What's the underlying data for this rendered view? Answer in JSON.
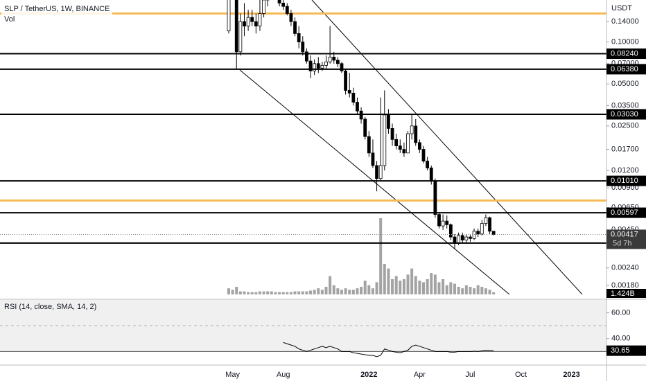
{
  "chart_data": [
    {
      "type": "candlestick",
      "title": "SLP / TetherUS, 1W, BINANCE",
      "volume_title": "Vol",
      "currency": "USDT",
      "countdown": "5d 7h",
      "volume_last_label": "1.424B",
      "log": true,
      "grid": false,
      "up_color": "#ffffff",
      "down_color": "#000000",
      "volume_color": "#8c8c8c",
      "ylim": [
        0.00155,
        0.2
      ],
      "yticks": [
        {
          "value": 0.14,
          "label": "0.14000"
        },
        {
          "value": 0.1,
          "label": "0.10000"
        },
        {
          "value": 0.07,
          "label": "0.07000"
        },
        {
          "value": 0.05,
          "label": "0.05000"
        },
        {
          "value": 0.035,
          "label": "0.03500"
        },
        {
          "value": 0.025,
          "label": "0.02500"
        },
        {
          "value": 0.017,
          "label": "0.01700"
        },
        {
          "value": 0.012,
          "label": "0.01200"
        },
        {
          "value": 0.009,
          "label": "0.00900"
        },
        {
          "value": 0.0065,
          "label": "0.00650"
        },
        {
          "value": 0.0045,
          "label": "0.00450"
        },
        {
          "value": 0.0024,
          "label": "0.00240"
        },
        {
          "value": 0.0018,
          "label": "0.00180"
        }
      ],
      "levels": [
        {
          "value": 0.0824,
          "label": "0.08240"
        },
        {
          "value": 0.0638,
          "label": "0.06380"
        },
        {
          "value": 0.0303,
          "label": "0.03030"
        },
        {
          "value": 0.0101,
          "label": "0.01010"
        },
        0.00597,
        0.00362
      ],
      "highlight_levels": [
        0.16,
        0.0073
      ],
      "highlight_color": "#f7b955",
      "categories": [
        null,
        "May",
        null,
        null,
        null,
        null,
        null,
        null,
        null,
        null,
        null,
        null,
        null,
        null,
        "Aug",
        null,
        null,
        null,
        null,
        null,
        null,
        null,
        null,
        null,
        null,
        null,
        null,
        null,
        null,
        null,
        null,
        null,
        null,
        null,
        null,
        null,
        "2022",
        null,
        null,
        null,
        null,
        null,
        null,
        null,
        null,
        null,
        null,
        null,
        null,
        "Apr",
        null,
        null,
        null,
        null,
        null,
        null,
        null,
        null,
        null,
        null,
        null,
        null,
        "Jul",
        null,
        null,
        null,
        null,
        null,
        null,
        null,
        null,
        null,
        null,
        null,
        null,
        "Oct",
        null,
        null,
        null,
        null,
        null,
        null,
        null,
        null,
        null,
        null,
        null,
        null,
        "2023"
      ],
      "open": [
        0.12,
        0.28,
        0.3,
        0.085,
        0.14,
        0.13,
        0.15,
        0.14,
        0.13,
        0.16,
        0.2,
        0.23,
        0.26,
        0.22,
        0.19,
        0.18,
        0.16,
        0.14,
        0.115,
        0.1,
        0.085,
        0.073,
        0.062,
        0.07,
        0.065,
        0.068,
        0.072,
        0.078,
        0.074,
        0.07,
        0.062,
        0.045,
        0.043,
        0.037,
        0.032,
        0.028,
        0.021,
        0.016,
        0.013,
        0.0105,
        0.013,
        0.03,
        0.024,
        0.02,
        0.018,
        0.017,
        0.016,
        0.022,
        0.025,
        0.019,
        0.017,
        0.014,
        0.0125,
        0.0101,
        0.0058,
        0.0048,
        0.0052,
        0.0049,
        0.004,
        0.0036,
        0.0041,
        0.0038,
        0.004,
        0.0039,
        0.0044,
        0.0042,
        0.005,
        0.0055,
        0.0044,
        null,
        null,
        null,
        null,
        null,
        null,
        null,
        null,
        null,
        null,
        null,
        null,
        null,
        null,
        null,
        null,
        null,
        null,
        null,
        null
      ],
      "high": [
        0.32,
        0.4,
        0.33,
        0.16,
        0.19,
        0.17,
        0.17,
        0.16,
        0.2,
        0.22,
        0.26,
        0.3,
        0.28,
        0.24,
        0.2,
        0.19,
        0.17,
        0.15,
        0.13,
        0.11,
        0.09,
        0.08,
        0.075,
        0.078,
        0.072,
        0.08,
        0.13,
        0.085,
        0.078,
        0.072,
        0.064,
        0.06,
        0.047,
        0.04,
        0.034,
        0.029,
        0.023,
        0.02,
        0.014,
        0.04,
        0.045,
        0.033,
        0.026,
        0.022,
        0.02,
        0.019,
        0.023,
        0.03,
        0.028,
        0.02,
        0.018,
        0.015,
        0.013,
        0.0105,
        0.006,
        0.0058,
        0.0057,
        0.005,
        0.0042,
        0.0043,
        0.0043,
        0.0042,
        0.0042,
        0.0046,
        0.0046,
        0.0053,
        0.0058,
        0.0056,
        0.0044,
        null,
        null,
        null,
        null,
        null,
        null,
        null,
        null,
        null,
        null,
        null,
        null,
        null,
        null,
        null,
        null,
        null,
        null,
        null,
        null
      ],
      "low": [
        0.115,
        0.2,
        0.064,
        0.08,
        0.11,
        0.12,
        0.13,
        0.115,
        0.12,
        0.15,
        0.18,
        0.2,
        0.2,
        0.18,
        0.17,
        0.155,
        0.13,
        0.11,
        0.09,
        0.08,
        0.07,
        0.055,
        0.058,
        0.06,
        0.062,
        0.064,
        0.07,
        0.07,
        0.066,
        0.06,
        0.042,
        0.04,
        0.035,
        0.03,
        0.026,
        0.02,
        0.015,
        0.0125,
        0.0085,
        0.01,
        0.012,
        0.022,
        0.018,
        0.017,
        0.016,
        0.015,
        0.016,
        0.02,
        0.018,
        0.016,
        0.0135,
        0.012,
        0.0095,
        0.0055,
        0.0046,
        0.0045,
        0.0046,
        0.0038,
        0.0033,
        0.0035,
        0.0036,
        0.0036,
        0.0037,
        0.0038,
        0.004,
        0.0041,
        0.0048,
        0.0042,
        0.0041,
        null,
        null,
        null,
        null,
        null,
        null,
        null,
        null,
        null,
        null,
        null,
        null,
        null,
        null,
        null,
        null,
        null,
        null,
        null,
        null
      ],
      "close": [
        0.28,
        0.3,
        0.085,
        0.14,
        0.13,
        0.15,
        0.14,
        0.13,
        0.16,
        0.2,
        0.23,
        0.26,
        0.22,
        0.19,
        0.18,
        0.16,
        0.14,
        0.115,
        0.1,
        0.085,
        0.073,
        0.062,
        0.07,
        0.065,
        0.068,
        0.072,
        0.078,
        0.074,
        0.07,
        0.062,
        0.045,
        0.043,
        0.037,
        0.032,
        0.028,
        0.021,
        0.016,
        0.013,
        0.0105,
        0.013,
        0.03,
        0.024,
        0.02,
        0.018,
        0.017,
        0.016,
        0.022,
        0.025,
        0.019,
        0.017,
        0.014,
        0.0125,
        0.0101,
        0.0058,
        0.0048,
        0.0052,
        0.0049,
        0.004,
        0.0036,
        0.0041,
        0.0038,
        0.004,
        0.0039,
        0.0044,
        0.0042,
        0.005,
        0.0055,
        0.0044,
        0.00417,
        null,
        null,
        null,
        null,
        null,
        null,
        null,
        null,
        null,
        null,
        null,
        null,
        null,
        null,
        null,
        null,
        null,
        null,
        null,
        null
      ],
      "volume": [
        4,
        3,
        5,
        2,
        2,
        1.5,
        1.5,
        1.5,
        2,
        2,
        2,
        2,
        1.5,
        1.5,
        1.5,
        1.5,
        1.5,
        2,
        2,
        2,
        2,
        2.5,
        3,
        4,
        3,
        5,
        12,
        6,
        4,
        3,
        4,
        3,
        3,
        4,
        5,
        9,
        6,
        4,
        8,
        50,
        20,
        17,
        10,
        12,
        9,
        10,
        13,
        17,
        12,
        9,
        8,
        10,
        14,
        13,
        8,
        10,
        6,
        8,
        7,
        5,
        4,
        6,
        5,
        4,
        6,
        5,
        4,
        3,
        1.424,
        null,
        null,
        null,
        null,
        null,
        null,
        null,
        null,
        null,
        null,
        null,
        null,
        null,
        null,
        null,
        null,
        null,
        null,
        null,
        null
      ]
    },
    {
      "type": "line",
      "title": "RSI (14, close, SMA, 14, 2)",
      "color": "#000000",
      "ylim": [
        20,
        70
      ],
      "yticks": [
        {
          "value": 60,
          "label": "60.00"
        },
        {
          "value": 40,
          "label": "40.00"
        }
      ],
      "band": [
        30,
        70
      ],
      "band_color": "#f0f0f0",
      "midline": 50,
      "values": [
        null,
        null,
        null,
        null,
        null,
        null,
        null,
        null,
        null,
        null,
        null,
        null,
        null,
        null,
        37,
        36,
        35,
        34,
        32,
        31,
        30,
        31,
        32,
        33,
        34,
        33,
        34,
        33,
        32,
        30,
        30,
        30,
        29,
        28.5,
        28,
        27.5,
        27,
        27,
        26,
        27,
        32,
        31,
        30,
        29.5,
        29,
        30,
        31,
        34,
        35,
        34,
        33,
        32,
        31,
        30,
        30,
        30,
        30,
        29.5,
        29.5,
        30,
        30,
        30,
        30,
        30.2,
        30,
        30.5,
        31,
        30.8,
        30.65,
        null,
        null,
        null,
        null,
        null,
        null,
        null,
        null,
        null,
        null,
        null,
        null,
        null,
        null,
        null,
        null,
        null,
        null,
        null,
        null
      ]
    }
  ]
}
